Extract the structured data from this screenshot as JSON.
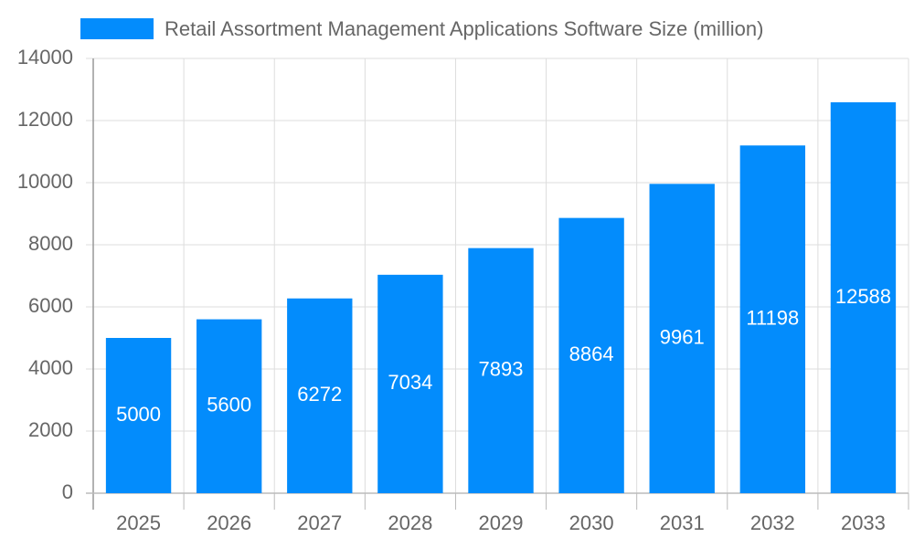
{
  "chart_data": {
    "type": "bar",
    "categories": [
      "2025",
      "2026",
      "2027",
      "2028",
      "2029",
      "2030",
      "2031",
      "2032",
      "2033"
    ],
    "series": [
      {
        "name": "Retail Assortment Management Applications Software Size (million)",
        "color": "#038cfc",
        "values": [
          5000,
          5600,
          6272,
          7034,
          7893,
          8864,
          9961,
          11198,
          12588
        ]
      }
    ],
    "ylim": [
      0,
      14000
    ],
    "yticks": [
      0,
      2000,
      4000,
      6000,
      8000,
      10000,
      12000,
      14000
    ],
    "grid": true,
    "legend": "top"
  }
}
